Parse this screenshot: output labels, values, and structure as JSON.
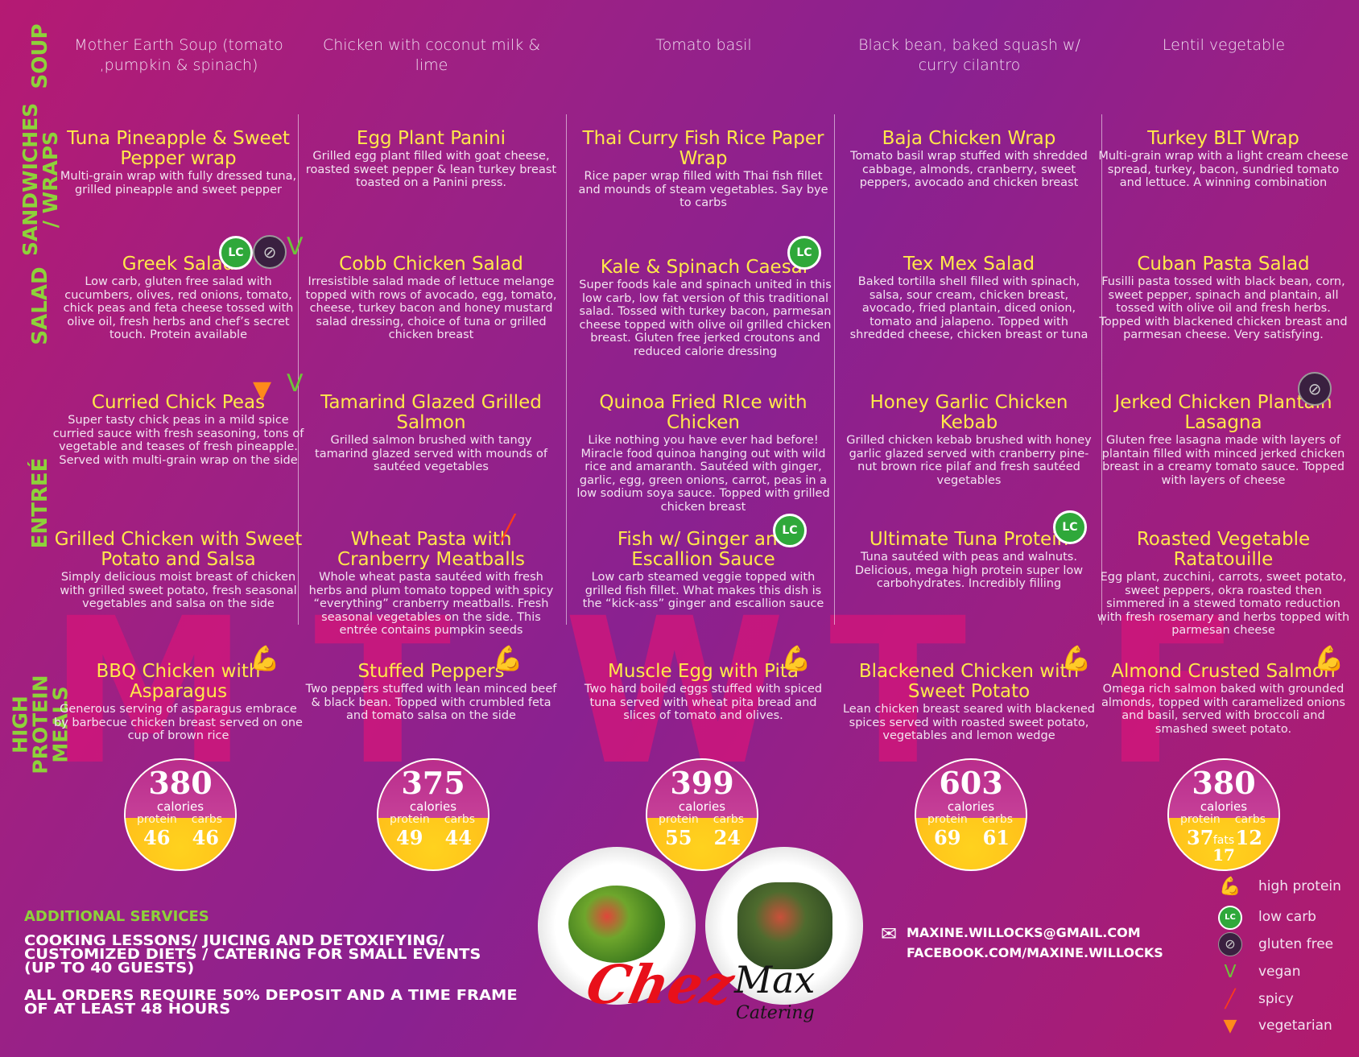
{
  "side_labels": {
    "soup": "SOUP",
    "sandwiches": "SANDWICHES / WRAPS",
    "salad": "SALAD",
    "entree": "ENTREÉ",
    "high_protein": "HIGH PROTEIN MEALS"
  },
  "day_letters": [
    "M",
    "T",
    "W",
    "T",
    "F"
  ],
  "soups": [
    "Mother Earth Soup (tomato ,pumpkin & spinach)",
    "Chicken with coconut milk & lime",
    "Tomato basil",
    "Black bean, baked squash w/ curry cilantro",
    "Lentil vegetable"
  ],
  "sandwiches": [
    {
      "title": "Tuna Pineapple & Sweet Pepper wrap",
      "desc": "Multi-grain wrap with fully dressed tuna, grilled pineapple and sweet pepper"
    },
    {
      "title": "Egg Plant Panini",
      "desc": "Grilled egg plant filled with goat cheese, roasted sweet pepper & lean turkey breast toasted on a Panini press."
    },
    {
      "title": "Thai Curry Fish Rice Paper Wrap",
      "desc": "Rice paper wrap filled with Thai fish fillet and mounds of steam vegetables. Say bye to carbs"
    },
    {
      "title": "Baja Chicken Wrap",
      "desc": "Tomato basil wrap stuffed with shredded cabbage, almonds, cranberry, sweet peppers, avocado and chicken breast"
    },
    {
      "title": "Turkey BLT Wrap",
      "desc": "Multi-grain wrap with a light cream cheese spread, turkey, bacon, sundried tomato and lettuce. A winning combination"
    }
  ],
  "salads": [
    {
      "title": "Greek Salad",
      "desc": "Low carb, gluten free salad with cucumbers, olives, red onions, tomato, chick peas and feta cheese tossed with olive oil, fresh herbs and chef’s secret touch. Protein available"
    },
    {
      "title": "Cobb Chicken Salad",
      "desc": "Irresistible salad made of lettuce melange topped with rows of avocado, egg, tomato, cheese, turkey bacon and honey mustard salad dressing, choice of tuna or grilled chicken breast"
    },
    {
      "title": "Kale & Spinach Caesar",
      "desc": "Super foods kale and spinach united in this low carb, low fat version of this traditional salad. Tossed with turkey bacon, parmesan cheese topped with olive oil grilled chicken breast. Gluten free jerked croutons and reduced calorie dressing"
    },
    {
      "title": "Tex Mex Salad",
      "desc": "Baked tortilla shell filled with spinach, salsa, sour cream, chicken breast, avocado, fried plantain, diced onion, tomato and jalapeno. Topped with shredded cheese, chicken breast or tuna"
    },
    {
      "title": "Cuban Pasta Salad",
      "desc": "Fusilli pasta tossed with black bean, corn, sweet pepper, spinach and plantain, all tossed with olive oil and fresh herbs. Topped with blackened chicken breast and parmesan cheese. Very satisfying."
    }
  ],
  "entrees1": [
    {
      "title": "Curried Chick Peas",
      "desc": "Super tasty chick peas in a mild spice curried sauce with fresh seasoning, tons of vegetable and teases of fresh pineapple. Served with multi-grain wrap on the side"
    },
    {
      "title": "Tamarind Glazed Grilled Salmon",
      "desc": "Grilled salmon brushed with tangy tamarind glazed served with mounds of sautéed vegetables"
    },
    {
      "title": "Quinoa Fried RIce with Chicken",
      "desc": "Like nothing you have ever had before! Miracle food quinoa hanging out with wild rice and amaranth. Sautéed with ginger, garlic, egg, green onions, carrot, peas in a low sodium soya sauce. Topped with grilled chicken breast"
    },
    {
      "title": "Honey Garlic Chicken Kebab",
      "desc": "Grilled chicken kebab brushed with honey garlic glazed served with cranberry pine-nut brown rice pilaf and fresh sautéed vegetables"
    },
    {
      "title": "Jerked Chicken Plantain Lasagna",
      "desc": "Gluten free lasagna made with layers of plantain filled with minced jerked chicken breast in a creamy tomato sauce. Topped with layers of cheese"
    }
  ],
  "entrees2": [
    {
      "title": "Grilled Chicken with Sweet Potato and Salsa",
      "desc": "Simply delicious moist breast of chicken with grilled sweet potato, fresh seasonal vegetables and salsa on the side"
    },
    {
      "title": "Wheat Pasta with Cranberry Meatballs",
      "desc": "Whole wheat pasta sautéed with fresh herbs and plum tomato topped with spicy “everything” cranberry meatballs. Fresh seasonal vegetables on the side. This entrée contains pumpkin seeds"
    },
    {
      "title": "Fish w/ Ginger and Escallion Sauce",
      "desc": "Low carb steamed veggie topped with grilled fish fillet. What makes this dish is the “kick-ass” ginger and escallion sauce"
    },
    {
      "title": "Ultimate Tuna Protein",
      "desc": "Tuna sautéed with peas and walnuts. Delicious, mega high protein super low carbohydrates. Incredibly filling"
    },
    {
      "title": "Roasted Vegetable Ratatouille",
      "desc": "Egg plant, zucchini, carrots, sweet potato, sweet peppers, okra roasted then simmered in a stewed tomato reduction with fresh rosemary and herbs topped with parmesan cheese"
    }
  ],
  "protein_meals": [
    {
      "title": "BBQ Chicken with Asparagus",
      "desc": "Generous serving of asparagus embrace by barbecue chicken breast served on one cup of brown rice"
    },
    {
      "title": "Stuffed Peppers",
      "desc": "Two peppers stuffed with lean minced beef & black bean. Topped with crumbled feta and tomato salsa on the side"
    },
    {
      "title": "Muscle Egg with Pita",
      "desc": "Two hard boiled eggs stuffed with spiced tuna served with wheat pita bread and slices of tomato and olives."
    },
    {
      "title": "Blackened Chicken with Sweet Potato",
      "desc": "Lean chicken breast seared with blackened spices served with roasted sweet potato, vegetables and lemon wedge"
    },
    {
      "title": "Almond Crusted Salmon",
      "desc": "Omega rich salmon baked with grounded almonds, topped with caramelized onions and basil, served with broccoli and smashed sweet potato."
    }
  ],
  "calories": [
    {
      "num": "380",
      "label": "calories",
      "protein_label": "protein",
      "carbs_label": "carbs",
      "protein": "46",
      "carbs": "46"
    },
    {
      "num": "375",
      "label": "calories",
      "protein_label": "protein",
      "carbs_label": "carbs",
      "protein": "49",
      "carbs": "44"
    },
    {
      "num": "399",
      "label": "calories",
      "protein_label": "protein",
      "carbs_label": "carbs",
      "protein": "55",
      "carbs": "24"
    },
    {
      "num": "603",
      "label": "calories",
      "protein_label": "protein",
      "carbs_label": "carbs",
      "protein": "69",
      "carbs": "61"
    },
    {
      "num": "380",
      "label": "calories",
      "protein_label": "protein",
      "carbs_label": "carbs",
      "protein": "37",
      "carbs": "12",
      "fats_label": "fats",
      "fats": "17"
    }
  ],
  "badges": {
    "lc": "LC"
  },
  "services": {
    "heading": "ADDITIONAL SERVICES",
    "line1": "COOKING LESSONS/ JUICING AND DETOXIFYING/",
    "line2": "CUSTOMIZED DIETS / CATERING FOR SMALL EVENTS",
    "line3": "(UP TO 40 GUESTS)",
    "line4": "ALL ORDERS REQUIRE 50% DEPOSIT AND A TIME FRAME",
    "line5": "OF AT LEAST 48 HOURS"
  },
  "contact": {
    "email": "MAXINE.WILLOCKS@GMAIL.COM",
    "facebook": "FACEBOOK.COM/MAXINE.WILLOCKS",
    "email_icon": "✉"
  },
  "logo": {
    "chez": "Chez",
    "max": "Max",
    "catering": "Catering"
  },
  "legend": [
    {
      "icon": "muscle-icon",
      "label": "high protein"
    },
    {
      "icon": "lc-icon",
      "label": "low carb"
    },
    {
      "icon": "gluten-free-icon",
      "label": "gluten free"
    },
    {
      "icon": "vegan-leaf-icon",
      "label": "vegan"
    },
    {
      "icon": "chili-pepper-icon",
      "label": "spicy"
    },
    {
      "icon": "carrot-icon",
      "label": "vegetarian"
    }
  ],
  "colors": {
    "title_yellow": "#ffe84a",
    "section_green": "#8dd23a",
    "badge_green": "#2fa83a",
    "calorie_orange": "#ffc01a"
  }
}
